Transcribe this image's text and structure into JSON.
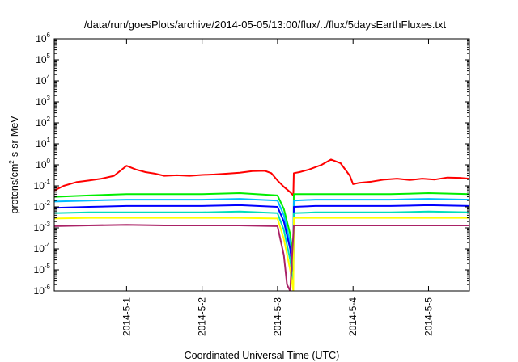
{
  "chart_data": {
    "type": "line",
    "title": "/data/run/goesPlots/archive/2014-05-05/13:00/flux/../flux/5daysEarthFluxes.txt",
    "xlabel": "Coordinated Universal Time (UTC)",
    "ylabel": {
      "prefix": "protons/cm",
      "sup": "2",
      "suffix": "-s-sr-MeV"
    },
    "y_scale": "log",
    "ylim": [
      1e-06,
      1000000.0
    ],
    "y_ticks": [
      {
        "base": "10",
        "exp": "6"
      },
      {
        "base": "10",
        "exp": "5"
      },
      {
        "base": "10",
        "exp": "4"
      },
      {
        "base": "10",
        "exp": "3"
      },
      {
        "base": "10",
        "exp": "2"
      },
      {
        "base": "10",
        "exp": "1"
      },
      {
        "base": "10",
        "exp": "0"
      },
      {
        "base": "10",
        "exp": "-1"
      },
      {
        "base": "10",
        "exp": "-2"
      },
      {
        "base": "10",
        "exp": "-3"
      },
      {
        "base": "10",
        "exp": "-4"
      },
      {
        "base": "10",
        "exp": "-5"
      },
      {
        "base": "10",
        "exp": "-6"
      }
    ],
    "xlim": [
      "2014-04-30T01:00",
      "2014-05-05T13:00"
    ],
    "x_ticks": [
      "2014-5-1",
      "2014-5-2",
      "2014-5-3",
      "2014-5-4",
      "2014-5-5"
    ],
    "grid": false,
    "legend": "none",
    "series": [
      {
        "color": "#ff0000",
        "x": [
          "2014-04-30T01:00",
          "2014-04-30T04:00",
          "2014-04-30T08:00",
          "2014-04-30T12:00",
          "2014-04-30T16:00",
          "2014-04-30T20:00",
          "2014-05-01T00:00",
          "2014-05-01T03:00",
          "2014-05-01T06:00",
          "2014-05-01T09:00",
          "2014-05-01T12:00",
          "2014-05-01T16:00",
          "2014-05-01T20:00",
          "2014-05-02T00:00",
          "2014-05-02T04:00",
          "2014-05-02T08:00",
          "2014-05-02T12:00",
          "2014-05-02T16:00",
          "2014-05-02T20:00",
          "2014-05-02T22:00",
          "2014-05-03T00:00",
          "2014-05-03T02:00",
          "2014-05-03T04:00",
          "2014-05-03T05:00",
          "2014-05-03T05:10",
          "2014-05-03T07:00",
          "2014-05-03T10:00",
          "2014-05-03T14:00",
          "2014-05-03T17:00",
          "2014-05-03T20:00",
          "2014-05-03T23:00",
          "2014-05-04T00:00",
          "2014-05-04T02:00",
          "2014-05-04T06:00",
          "2014-05-04T10:00",
          "2014-05-04T14:00",
          "2014-05-04T18:00",
          "2014-05-04T22:00",
          "2014-05-05T02:00",
          "2014-05-05T06:00",
          "2014-05-05T10:00",
          "2014-05-05T13:00"
        ],
        "y": [
          0.06,
          0.1,
          0.15,
          0.18,
          0.22,
          0.3,
          0.9,
          0.6,
          0.45,
          0.38,
          0.3,
          0.32,
          0.3,
          0.33,
          0.35,
          0.38,
          0.42,
          0.5,
          0.52,
          0.4,
          0.18,
          0.09,
          0.05,
          0.035,
          0.4,
          0.45,
          0.6,
          1.0,
          1.8,
          1.2,
          0.3,
          0.12,
          0.14,
          0.16,
          0.2,
          0.22,
          0.19,
          0.22,
          0.2,
          0.25,
          0.24,
          0.22
        ]
      },
      {
        "color": "#00ee00",
        "x": [
          "2014-04-30T01:00",
          "2014-04-30T12:00",
          "2014-05-01T00:00",
          "2014-05-01T12:00",
          "2014-05-02T00:00",
          "2014-05-02T12:00",
          "2014-05-03T00:00",
          "2014-05-03T02:00",
          "2014-05-03T04:00",
          "2014-05-03T05:00",
          "2014-05-03T05:10",
          "2014-05-03T12:00",
          "2014-05-04T00:00",
          "2014-05-04T12:00",
          "2014-05-05T00:00",
          "2014-05-05T13:00"
        ],
        "y": [
          0.03,
          0.035,
          0.04,
          0.04,
          0.04,
          0.045,
          0.035,
          0.008,
          0.0005,
          3e-05,
          0.04,
          0.04,
          0.04,
          0.04,
          0.045,
          0.04
        ]
      },
      {
        "color": "#00bbff",
        "x": [
          "2014-04-30T01:00",
          "2014-04-30T12:00",
          "2014-05-01T00:00",
          "2014-05-01T12:00",
          "2014-05-02T00:00",
          "2014-05-02T12:00",
          "2014-05-03T00:00",
          "2014-05-03T02:00",
          "2014-05-03T04:00",
          "2014-05-03T05:00",
          "2014-05-03T05:10",
          "2014-05-03T12:00",
          "2014-05-04T00:00",
          "2014-05-04T12:00",
          "2014-05-05T00:00",
          "2014-05-05T13:00"
        ],
        "y": [
          0.018,
          0.02,
          0.022,
          0.022,
          0.022,
          0.024,
          0.02,
          0.004,
          0.0002,
          1e-05,
          0.02,
          0.022,
          0.022,
          0.022,
          0.024,
          0.022
        ]
      },
      {
        "color": "#0000ff",
        "x": [
          "2014-04-30T01:00",
          "2014-04-30T12:00",
          "2014-05-01T00:00",
          "2014-05-01T12:00",
          "2014-05-02T00:00",
          "2014-05-02T12:00",
          "2014-05-03T00:00",
          "2014-05-03T02:00",
          "2014-05-03T04:00",
          "2014-05-03T05:00",
          "2014-05-03T05:10",
          "2014-05-03T12:00",
          "2014-05-04T00:00",
          "2014-05-04T12:00",
          "2014-05-05T00:00",
          "2014-05-05T13:00"
        ],
        "y": [
          0.009,
          0.01,
          0.011,
          0.011,
          0.011,
          0.012,
          0.01,
          0.002,
          0.0001,
          5e-06,
          0.01,
          0.011,
          0.011,
          0.011,
          0.012,
          0.011
        ]
      },
      {
        "color": "#00ddbb",
        "x": [
          "2014-04-30T01:00",
          "2014-04-30T12:00",
          "2014-05-01T00:00",
          "2014-05-01T12:00",
          "2014-05-02T00:00",
          "2014-05-02T12:00",
          "2014-05-03T00:00",
          "2014-05-03T02:00",
          "2014-05-03T04:00",
          "2014-05-03T05:00",
          "2014-05-03T05:10",
          "2014-05-03T12:00",
          "2014-05-04T00:00",
          "2014-05-04T12:00",
          "2014-05-05T00:00",
          "2014-05-05T13:00"
        ],
        "y": [
          0.005,
          0.0055,
          0.0055,
          0.0055,
          0.0055,
          0.006,
          0.005,
          0.0008,
          3e-05,
          2e-06,
          0.005,
          0.0055,
          0.0055,
          0.0055,
          0.006,
          0.0055
        ]
      },
      {
        "color": "#ffff00",
        "x": [
          "2014-04-30T01:00",
          "2014-04-30T12:00",
          "2014-05-01T00:00",
          "2014-05-01T12:00",
          "2014-05-02T00:00",
          "2014-05-02T12:00",
          "2014-05-03T00:00",
          "2014-05-03T02:00",
          "2014-05-03T04:00",
          "2014-05-03T05:00",
          "2014-05-03T05:10",
          "2014-05-03T12:00",
          "2014-05-04T00:00",
          "2014-05-04T12:00",
          "2014-05-05T00:00",
          "2014-05-05T13:00"
        ],
        "y": [
          0.0028,
          0.003,
          0.003,
          0.003,
          0.003,
          0.003,
          0.0028,
          0.0003,
          1e-05,
          1e-06,
          0.003,
          0.003,
          0.003,
          0.003,
          0.003,
          0.003
        ]
      },
      {
        "color": "#aa2266",
        "x": [
          "2014-04-30T01:00",
          "2014-04-30T12:00",
          "2014-05-01T00:00",
          "2014-05-01T12:00",
          "2014-05-02T00:00",
          "2014-05-02T12:00",
          "2014-05-03T00:00",
          "2014-05-03T02:00",
          "2014-05-03T03:00",
          "2014-05-03T04:00",
          "2014-05-03T05:10",
          "2014-05-03T12:00",
          "2014-05-04T00:00",
          "2014-05-04T12:00",
          "2014-05-05T00:00",
          "2014-05-05T13:00"
        ],
        "y": [
          0.0012,
          0.0013,
          0.0014,
          0.0013,
          0.0013,
          0.0013,
          0.0012,
          5e-05,
          2e-06,
          1e-06,
          0.0013,
          0.0013,
          0.0013,
          0.0013,
          0.0013,
          0.0013
        ]
      }
    ]
  }
}
